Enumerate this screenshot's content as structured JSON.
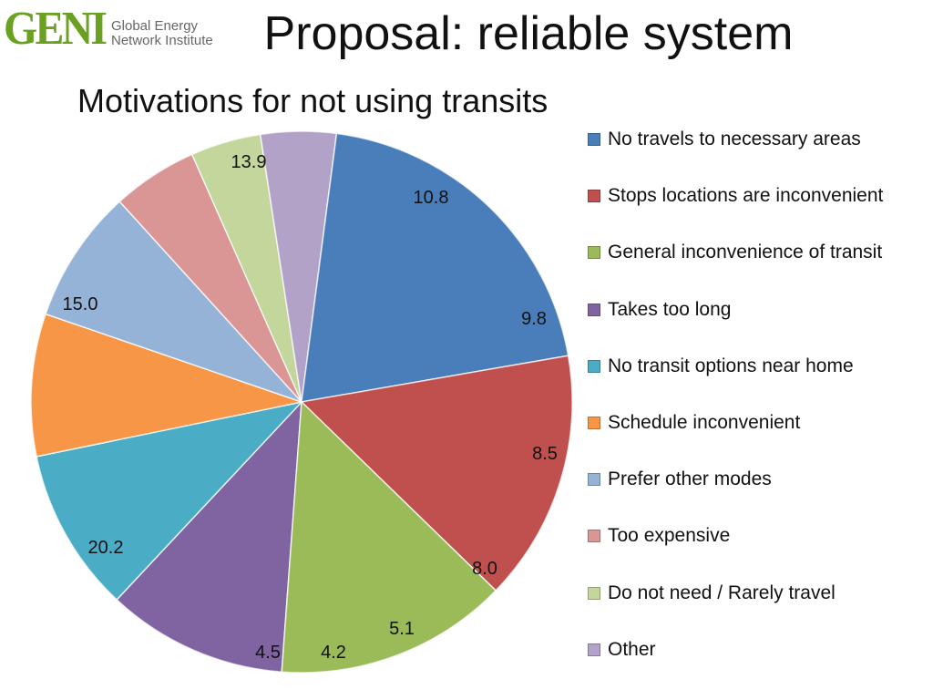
{
  "header": {
    "logo_mark": "GENI",
    "logo_line1": "Global Energy",
    "logo_line2": "Network Institute",
    "title": "Proposal: reliable system"
  },
  "chart_data": {
    "type": "pie",
    "title": "Motivations for not using transits",
    "legend_position": "right",
    "slices": [
      {
        "label": "No travels to necessary areas",
        "value": 20.2,
        "color": "#4a7ebb"
      },
      {
        "label": "Stops locations are inconvenient",
        "value": 15.0,
        "color": "#c0504d"
      },
      {
        "label": "General inconvenience of transit",
        "value": 13.9,
        "color": "#9bbb59"
      },
      {
        "label": "Takes too long",
        "value": 10.8,
        "color": "#8064a2"
      },
      {
        "label": "No transit options near home",
        "value": 9.8,
        "color": "#4bacc6"
      },
      {
        "label": "Schedule inconvenient",
        "value": 8.5,
        "color": "#f79646"
      },
      {
        "label": "Prefer other modes",
        "value": 8.0,
        "color": "#95b3d7"
      },
      {
        "label": "Too expensive",
        "value": 5.1,
        "color": "#d99694"
      },
      {
        "label": "Do not need / Rarely travel",
        "value": 4.2,
        "color": "#c3d69b"
      },
      {
        "label": "Other",
        "value": 4.5,
        "color": "#b3a2c7"
      }
    ]
  }
}
